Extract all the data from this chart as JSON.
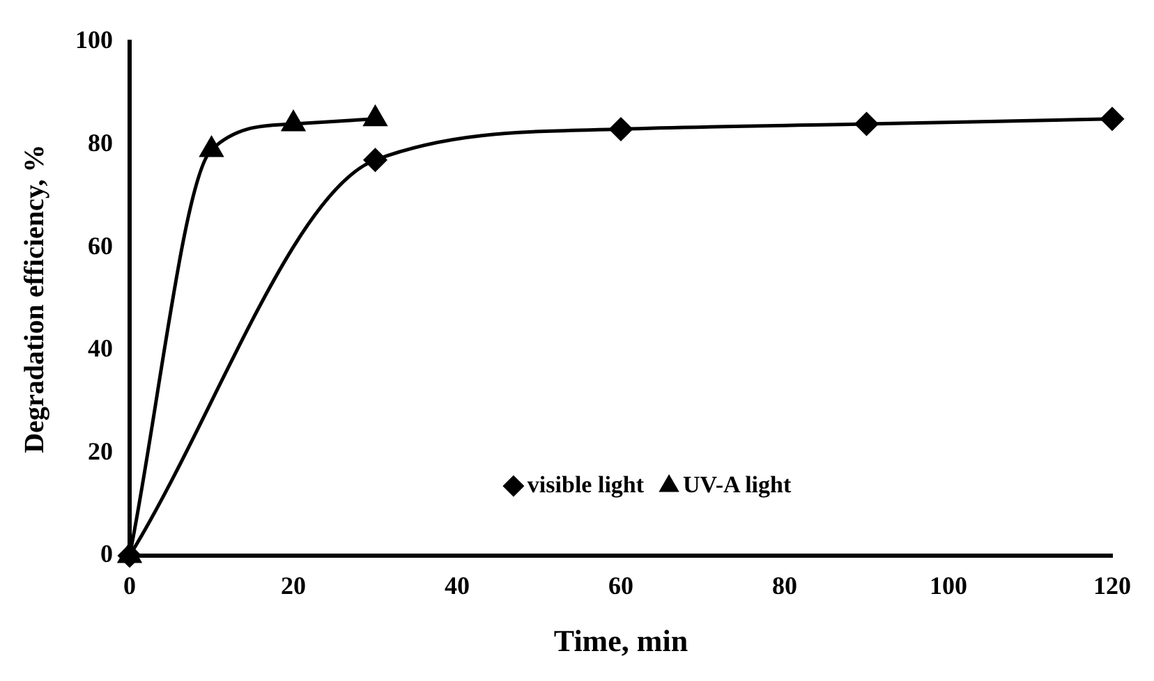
{
  "chart_data": {
    "type": "line",
    "xlabel": "Time, min",
    "ylabel": "Degradation efficiency, %",
    "xlim": [
      0,
      120
    ],
    "xticks": [
      0,
      20,
      40,
      60,
      80,
      100,
      120
    ],
    "ylim": [
      0,
      100
    ],
    "yticks": [
      0,
      20,
      40,
      60,
      80,
      100
    ],
    "grid": false,
    "legend": "bottom",
    "line_style": "solid",
    "series": [
      {
        "name": "visible light",
        "color": "#000000",
        "marker": "diamond",
        "x": [
          0,
          30,
          60,
          90,
          120
        ],
        "values": [
          0,
          77,
          83,
          84,
          85
        ]
      },
      {
        "name": "UV-A light",
        "color": "#000000",
        "marker": "triangle",
        "x": [
          0,
          10,
          20,
          30
        ],
        "values": [
          0,
          79,
          84,
          85
        ]
      }
    ]
  }
}
